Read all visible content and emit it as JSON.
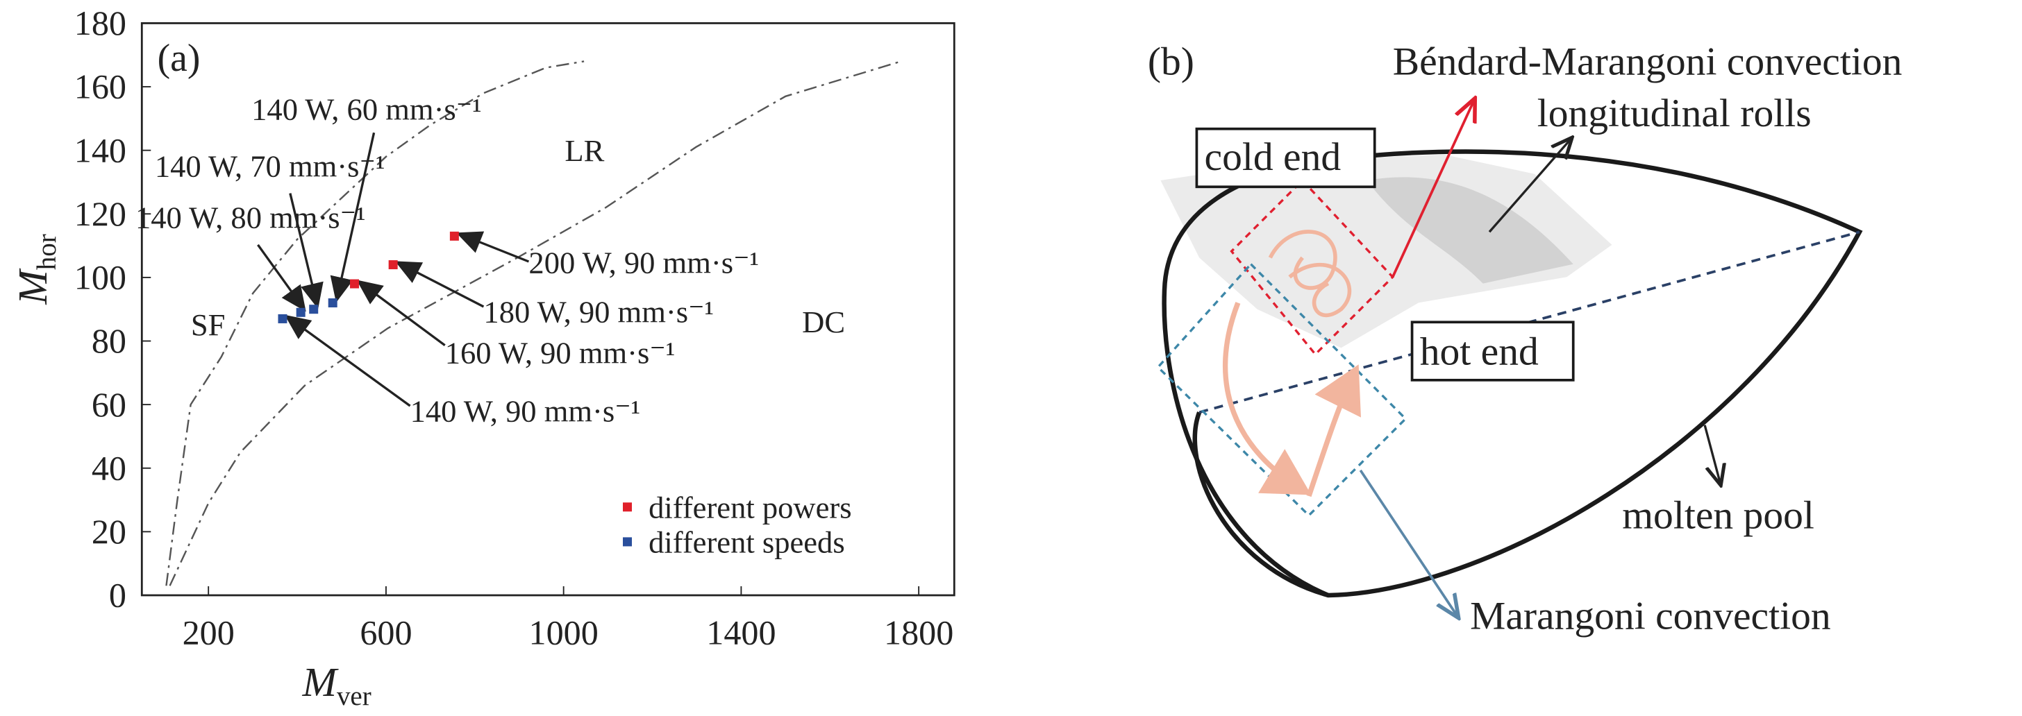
{
  "chart_data": {
    "type": "scatter",
    "panel_label": "(a)",
    "x_label": {
      "symbol": "M",
      "subscript": "ver"
    },
    "y_label": {
      "symbol": "M",
      "subscript": "hor"
    },
    "xlim": [
      50,
      1880
    ],
    "ylim": [
      0,
      180
    ],
    "xticks": [
      200,
      600,
      1000,
      1400,
      1800
    ],
    "yticks": [
      0,
      20,
      40,
      60,
      80,
      100,
      120,
      140,
      160,
      180
    ],
    "series": [
      {
        "name": "different powers",
        "color": "#e0202a",
        "x": [
          529,
          616,
          754
        ],
        "values": [
          98,
          104,
          113
        ],
        "point_labels": [
          "160 W, 90 mm·s⁻¹",
          "180 W, 90 mm·s⁻¹",
          "200 W, 90 mm·s⁻¹"
        ]
      },
      {
        "name": "different speeds",
        "color": "#2a4f9c",
        "x": [
          367,
          408,
          437,
          480
        ],
        "values": [
          87,
          89,
          90,
          92
        ],
        "point_labels": [
          "140 W, 90 mm·s⁻¹",
          "140 W, 80 mm·s⁻¹",
          "140 W, 70 mm·s⁻¹",
          "140 W, 60 mm·s⁻¹"
        ]
      }
    ],
    "curves": [
      {
        "color": "#555555",
        "x": [
          105,
          130,
          160,
          229,
          300,
          400,
          500,
          600,
          700,
          820,
          960,
          1046
        ],
        "values": [
          3,
          30,
          60,
          75,
          95,
          112,
          125,
          138,
          148,
          158,
          166,
          168
        ]
      },
      {
        "color": "#555555",
        "x": [
          113,
          200,
          272,
          417,
          604,
          893,
          1095,
          1298,
          1500,
          1760
        ],
        "values": [
          3,
          29,
          45,
          66,
          84,
          106,
          122,
          141,
          157,
          168
        ]
      }
    ],
    "region_labels": [
      "SF",
      "LR",
      "DC"
    ],
    "legend": "lower right"
  },
  "diagram": {
    "panel_label": "(b)",
    "labels": {
      "benard": "Béndard-Marangoni convection",
      "rolls": "longitudinal rolls",
      "cold": "cold end",
      "hot": "hot end",
      "pool": "molten pool",
      "marangoni": "Marangoni convection"
    }
  }
}
